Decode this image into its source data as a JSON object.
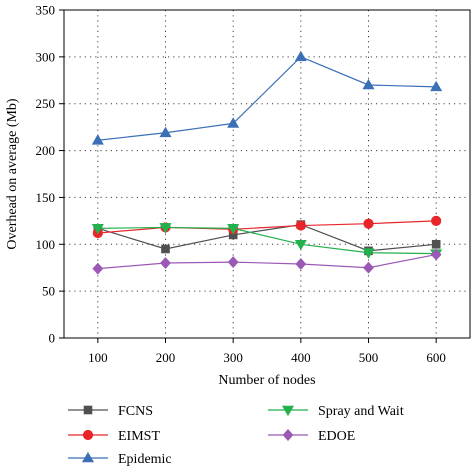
{
  "chart_data": {
    "type": "line",
    "title": "",
    "xlabel": "Number of nodes",
    "ylabel": "Overhead on average (Mb)",
    "x": [
      100,
      200,
      300,
      400,
      500,
      600
    ],
    "x_ticks": [
      "100",
      "200",
      "300",
      "400",
      "500",
      "600"
    ],
    "xlim": [
      50,
      650
    ],
    "ylim": [
      0,
      350
    ],
    "y_ticks": [
      "0",
      "50",
      "100",
      "150",
      "200",
      "250",
      "300",
      "350"
    ],
    "grid": true,
    "legend_position": "bottom",
    "series": [
      {
        "name": "FCNS",
        "color": "#505050",
        "marker": "square",
        "values": [
          117,
          95,
          110,
          121,
          93,
          100
        ]
      },
      {
        "name": "EIMST",
        "color": "#e8262a",
        "marker": "circle",
        "values": [
          112,
          118,
          116,
          120,
          122,
          125
        ]
      },
      {
        "name": "Epidemic",
        "color": "#3b6fb6",
        "marker": "triangle-up",
        "values": [
          211,
          219,
          229,
          300,
          270,
          268
        ]
      },
      {
        "name": "Spray and Wait",
        "color": "#22b14c",
        "marker": "triangle-down",
        "values": [
          117,
          118,
          117,
          100,
          91,
          90
        ]
      },
      {
        "name": "EDOE",
        "color": "#9b59b6",
        "marker": "diamond",
        "values": [
          74,
          80,
          81,
          79,
          75,
          89
        ]
      }
    ]
  }
}
